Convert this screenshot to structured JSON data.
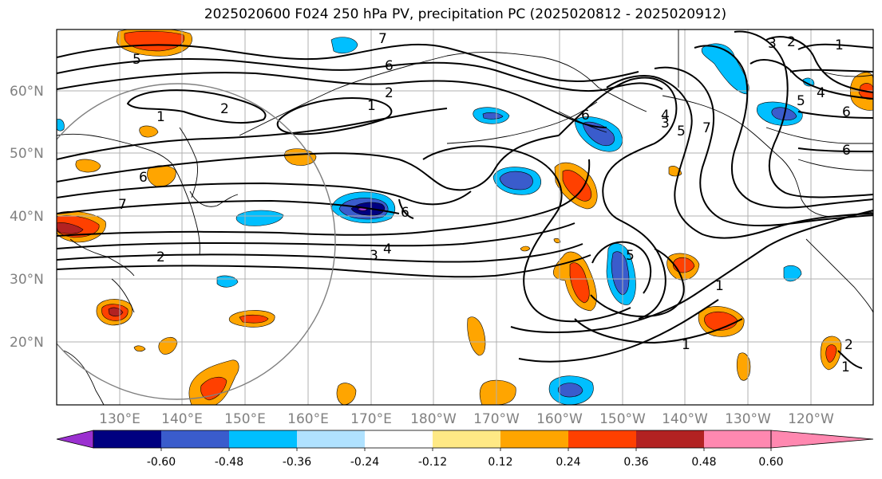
{
  "title": "2025020600 F024 250 hPa PV, precipitation PC (2025020812 - 2025020912)",
  "lat_labels": [
    "60°N",
    "50°N",
    "40°N",
    "30°N",
    "20°N"
  ],
  "lon_labels": [
    "130°E",
    "140°E",
    "150°E",
    "160°E",
    "170°E",
    "180°W",
    "170°W",
    "160°W",
    "150°W",
    "140°W",
    "130°W",
    "120°W"
  ],
  "contour_labels": [
    "7",
    "6",
    "5",
    "1",
    "2",
    "1",
    "2",
    "6",
    "7",
    "6",
    "2",
    "3",
    "4",
    "6",
    "4",
    "3",
    "5",
    "7",
    "3",
    "2",
    "1",
    "5",
    "4",
    "6",
    "6",
    "5",
    "1",
    "1",
    "1",
    "2"
  ],
  "colorbar": {
    "ticks": [
      "-0.60",
      "-0.48",
      "-0.36",
      "-0.24",
      "-0.12",
      "0.12",
      "0.24",
      "0.36",
      "0.48",
      "0.60"
    ],
    "colors": [
      "#9b30d0",
      "#000080",
      "#3a5ccc",
      "#00bfff",
      "#b0e2ff",
      "#ffffff",
      "#ffe985",
      "#ffa500",
      "#ff4000",
      "#b22222",
      "#ff88b0"
    ]
  }
}
